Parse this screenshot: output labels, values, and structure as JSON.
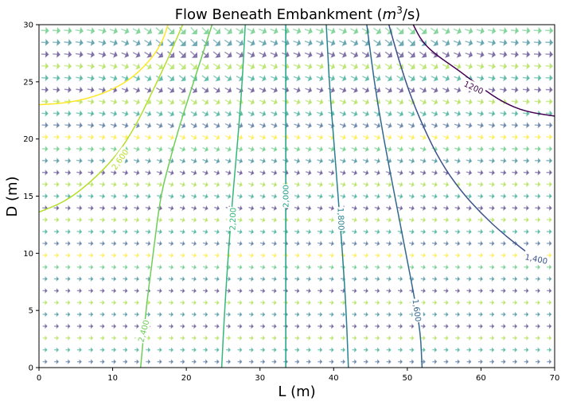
{
  "chart_data": {
    "type": "contour-quiver",
    "title_main": "Flow Beneath Embankment (",
    "title_unit_base": "m",
    "title_unit_exp": "3",
    "title_unit_tail": "/s)",
    "xlabel": "L (m)",
    "ylabel": "D (m)",
    "xlim": [
      0,
      70
    ],
    "ylim": [
      0,
      30
    ],
    "xticks": [
      0,
      10,
      20,
      30,
      40,
      50,
      60,
      70
    ],
    "yticks": [
      0,
      5,
      10,
      15,
      20,
      25,
      30
    ],
    "grid": false,
    "colors": {
      "c1200": "#440154",
      "c1400": "#3b528b",
      "c1600": "#31688e",
      "c1800": "#26828e",
      "c2000": "#1f9e89",
      "c2200": "#35b779",
      "c2400": "#6ece58",
      "c2600": "#b5de2b",
      "c2800": "#fde725"
    },
    "contours": [
      {
        "level": 1200,
        "label": "1200",
        "color_key": "c1200",
        "points": [
          [
            50.8,
            30
          ],
          [
            52,
            28.5
          ],
          [
            54,
            27.3
          ],
          [
            57,
            26
          ],
          [
            60,
            24.5
          ],
          [
            63,
            23.2
          ],
          [
            66,
            22.4
          ],
          [
            70,
            22
          ]
        ],
        "label_at": [
          59,
          24.5
        ],
        "label_angle": 25
      },
      {
        "level": 1400,
        "label": "1,400",
        "color_key": "c1400",
        "points": [
          [
            47.5,
            30
          ],
          [
            48.8,
            27
          ],
          [
            50.3,
            24
          ],
          [
            52.2,
            21
          ],
          [
            54.5,
            18
          ],
          [
            57.2,
            15.5
          ],
          [
            60,
            13.5
          ],
          [
            63,
            11.7
          ],
          [
            66,
            10.2
          ]
        ],
        "label_at": [
          67.5,
          9.5
        ],
        "label_angle": 12
      },
      {
        "level": 1600,
        "label": "1,600",
        "color_key": "c1600",
        "points": [
          [
            44.5,
            30
          ],
          [
            45.5,
            25
          ],
          [
            46.8,
            20
          ],
          [
            48.3,
            15
          ],
          [
            49.8,
            10
          ],
          [
            51,
            6
          ],
          [
            51.8,
            3
          ],
          [
            52,
            0
          ]
        ],
        "label_at": [
          51.3,
          5
        ],
        "label_angle": 82
      },
      {
        "level": 1800,
        "label": "1,800",
        "color_key": "c1800",
        "points": [
          [
            39,
            30
          ],
          [
            39.4,
            25
          ],
          [
            40,
            20
          ],
          [
            40.6,
            15
          ],
          [
            41.2,
            10
          ],
          [
            41.7,
            5
          ],
          [
            42,
            0
          ]
        ],
        "label_at": [
          41,
          13
        ],
        "label_angle": 88
      },
      {
        "level": 2000,
        "label": "2,000",
        "color_key": "c2000",
        "points": [
          [
            33.5,
            30
          ],
          [
            33.5,
            20
          ],
          [
            33.5,
            10
          ],
          [
            33.5,
            0
          ]
        ],
        "label_at": [
          33.5,
          15
        ],
        "label_angle": -90
      },
      {
        "level": 2200,
        "label": "2,200",
        "color_key": "c2200",
        "points": [
          [
            28,
            30
          ],
          [
            27.6,
            25
          ],
          [
            27,
            20
          ],
          [
            26.3,
            15
          ],
          [
            25.7,
            10
          ],
          [
            25.2,
            5
          ],
          [
            24.8,
            0
          ]
        ],
        "label_at": [
          26.3,
          13
        ],
        "label_angle": -88
      },
      {
        "level": 2400,
        "label": "2,400",
        "color_key": "c2400",
        "points": [
          [
            23.5,
            30
          ],
          [
            22,
            27
          ],
          [
            20.5,
            24
          ],
          [
            19,
            21
          ],
          [
            17.7,
            18
          ],
          [
            16.5,
            15
          ],
          [
            15.5,
            10
          ],
          [
            14.5,
            5
          ],
          [
            13.8,
            0
          ]
        ],
        "label_at": [
          14.2,
          3.2
        ],
        "label_angle": -75
      },
      {
        "level": 2600,
        "label": "2,600",
        "color_key": "c2600",
        "points": [
          [
            19.5,
            30
          ],
          [
            17.5,
            27
          ],
          [
            15.3,
            24
          ],
          [
            13,
            21
          ],
          [
            10.5,
            18.5
          ],
          [
            7,
            16.2
          ],
          [
            3.5,
            14.5
          ],
          [
            0,
            13.6
          ]
        ],
        "label_at": [
          11,
          18.2
        ],
        "label_angle": -55
      },
      {
        "level": 2800,
        "label": "",
        "color_key": "c2800",
        "points": [
          [
            17.5,
            30
          ],
          [
            16.8,
            28.6
          ],
          [
            15.5,
            27.2
          ],
          [
            13,
            25.5
          ],
          [
            10,
            24.3
          ],
          [
            6.5,
            23.5
          ],
          [
            3,
            23.1
          ],
          [
            0,
            23
          ]
        ],
        "label_at": null,
        "label_angle": 0
      }
    ]
  }
}
